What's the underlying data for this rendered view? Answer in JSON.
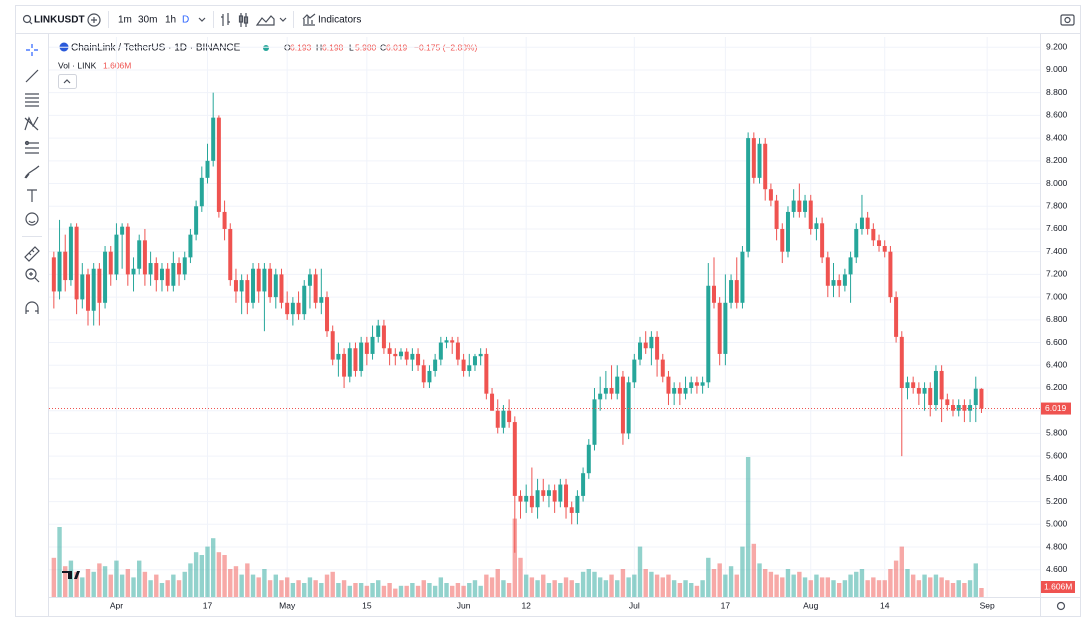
{
  "toolbar": {
    "symbol": "LINKUSDT",
    "intervals": [
      "1m",
      "30m",
      "1h",
      "D"
    ],
    "indicators": "Indicators"
  },
  "chart_data": {
    "type": "candlestick",
    "title": "ChainLink / TetherUS · 1D · BINANCE",
    "legend": [
      {
        "key": "O",
        "value": "6.193"
      },
      {
        "key": "H",
        "value": "6.198"
      },
      {
        "key": "L",
        "value": "5.980"
      },
      {
        "key": "C",
        "value": "6.019"
      }
    ],
    "change": "−0.175 (−2.83%)",
    "volume_name": "Vol · LINK",
    "volume_label": "1.606M",
    "last_price_label": "6.019",
    "up_color": "#26a69a",
    "down_color": "#ef5350",
    "categories": [
      null,
      null,
      null,
      null,
      null,
      null,
      null,
      null,
      null,
      null,
      null,
      "Apr",
      null,
      null,
      null,
      null,
      null,
      null,
      null,
      null,
      null,
      null,
      null,
      null,
      null,
      null,
      null,
      "17",
      null,
      null,
      null,
      null,
      null,
      null,
      null,
      null,
      null,
      null,
      null,
      null,
      null,
      "May",
      null,
      null,
      null,
      null,
      null,
      null,
      null,
      null,
      null,
      null,
      null,
      null,
      null,
      "15",
      null,
      null,
      null,
      null,
      null,
      null,
      null,
      null,
      null,
      null,
      null,
      null,
      null,
      null,
      null,
      null,
      "Jun",
      null,
      null,
      null,
      null,
      null,
      null,
      null,
      null,
      null,
      null,
      "12",
      null,
      null,
      null,
      null,
      null,
      null,
      null,
      null,
      null,
      null,
      null,
      null,
      null,
      null,
      null,
      null,
      null,
      null,
      "Jul",
      null,
      null,
      null,
      null,
      null,
      null,
      null,
      null,
      null,
      null,
      null,
      null,
      null,
      null,
      null,
      "17",
      null,
      null,
      null,
      null,
      null,
      null,
      null,
      null,
      null,
      null,
      null,
      null,
      null,
      null,
      "Aug",
      null,
      null,
      null,
      null,
      null,
      null,
      null,
      null,
      null,
      null,
      null,
      null,
      "14",
      null,
      null,
      null,
      null,
      null,
      null,
      null,
      null,
      null,
      null,
      null,
      null,
      null,
      null,
      null,
      null,
      null,
      "Sep"
    ],
    "open": [
      7.35,
      7.05,
      7.4,
      7.15,
      7.62,
      6.98,
      7.2,
      6.88,
      7.25,
      6.95,
      7.4,
      7.2,
      7.55,
      7.62,
      7.2,
      7.25,
      7.5,
      7.2,
      7.3,
      7.15,
      7.25,
      7.1,
      7.3,
      7.2,
      7.35,
      7.55,
      7.8,
      8.05,
      8.2,
      8.58,
      7.75,
      7.6,
      7.15,
      7.05,
      7.15,
      6.95,
      7.25,
      7.05,
      7.25,
      7.0,
      7.2,
      6.95,
      6.85,
      6.95,
      6.85,
      7.1,
      7.2,
      6.95,
      7.0,
      6.7,
      6.45,
      6.5,
      6.3,
      6.55,
      6.35,
      6.6,
      6.5,
      6.65,
      6.75,
      6.55,
      6.5,
      6.48,
      6.52,
      6.45,
      6.5,
      6.4,
      6.25,
      6.35,
      6.45,
      6.6,
      6.62,
      6.6,
      6.45,
      6.35,
      6.4,
      6.48,
      6.5,
      6.15,
      6.0,
      5.85,
      6.0,
      5.9,
      5.25,
      5.2,
      5.25,
      5.15,
      5.3,
      5.25,
      5.3,
      5.2,
      5.35,
      5.15,
      5.1,
      5.25,
      5.45,
      5.7,
      6.1,
      6.15,
      6.2,
      6.15,
      6.3,
      5.8,
      6.25,
      6.45,
      6.6,
      6.55,
      6.65,
      6.45,
      6.3,
      6.15,
      6.2,
      6.15,
      6.2,
      6.25,
      6.22,
      6.25,
      7.1,
      6.95,
      6.5,
      6.95,
      7.15,
      6.95,
      7.4,
      8.4,
      8.05,
      8.35,
      7.95,
      7.85,
      7.6,
      7.4,
      7.75,
      7.85,
      7.75,
      7.85,
      7.6,
      7.65,
      7.35,
      7.1,
      7.15,
      7.1,
      7.2,
      7.35,
      7.6,
      7.7,
      7.6,
      7.5,
      7.45,
      7.4,
      7.0,
      6.65,
      6.2,
      6.25,
      6.2,
      6.15,
      6.2,
      6.05,
      6.35,
      6.1,
      6.05,
      6.0,
      6.05,
      6.0,
      6.05,
      6.193,
      null
    ],
    "high": [
      7.4,
      7.68,
      7.55,
      7.65,
      7.65,
      7.3,
      7.25,
      7.3,
      7.3,
      7.45,
      7.45,
      7.65,
      7.65,
      7.65,
      7.35,
      7.55,
      7.6,
      7.4,
      7.35,
      7.3,
      7.3,
      7.4,
      7.35,
      7.4,
      7.6,
      7.85,
      8.15,
      8.35,
      8.8,
      8.6,
      7.85,
      7.65,
      7.25,
      7.2,
      7.2,
      7.3,
      7.3,
      7.3,
      7.3,
      7.25,
      7.25,
      7.05,
      7.0,
      7.05,
      7.15,
      7.25,
      7.25,
      7.25,
      7.05,
      6.75,
      6.6,
      6.55,
      6.6,
      6.6,
      6.65,
      6.65,
      6.75,
      6.8,
      6.8,
      6.6,
      6.55,
      6.55,
      6.55,
      6.55,
      6.55,
      6.45,
      6.4,
      6.5,
      6.65,
      6.65,
      6.65,
      6.65,
      6.5,
      6.5,
      6.5,
      6.55,
      6.55,
      6.2,
      6.1,
      6.05,
      6.1,
      5.95,
      5.3,
      5.35,
      5.5,
      5.4,
      5.4,
      5.35,
      5.35,
      5.4,
      5.4,
      5.2,
      5.3,
      5.5,
      5.75,
      6.2,
      6.3,
      6.35,
      6.4,
      6.4,
      6.35,
      6.3,
      6.5,
      6.65,
      6.7,
      6.7,
      6.7,
      6.5,
      6.35,
      6.25,
      6.25,
      6.3,
      6.3,
      6.3,
      6.3,
      7.3,
      7.35,
      7.0,
      7.2,
      7.2,
      7.35,
      7.45,
      8.45,
      8.45,
      8.4,
      8.4,
      8.0,
      7.9,
      7.65,
      7.8,
      7.95,
      8.0,
      7.9,
      7.9,
      7.7,
      7.7,
      7.4,
      7.3,
      7.2,
      7.25,
      7.4,
      7.65,
      7.9,
      7.75,
      7.65,
      7.55,
      7.5,
      7.45,
      7.05,
      6.7,
      6.3,
      6.3,
      6.25,
      6.25,
      6.25,
      6.4,
      6.4,
      6.15,
      6.1,
      6.1,
      6.1,
      6.1,
      6.3,
      6.198,
      null
    ],
    "low": [
      6.9,
      6.98,
      7.05,
      7.1,
      6.85,
      6.9,
      6.75,
      6.75,
      6.75,
      6.9,
      7.1,
      7.15,
      7.25,
      7.1,
      7.05,
      7.2,
      7.1,
      7.1,
      7.05,
      7.05,
      7.05,
      7.05,
      7.1,
      7.15,
      7.3,
      7.5,
      7.75,
      8.0,
      8.15,
      7.7,
      7.5,
      7.1,
      6.95,
      6.85,
      6.85,
      6.9,
      6.95,
      6.7,
      6.95,
      6.9,
      6.9,
      6.8,
      6.75,
      6.8,
      6.8,
      6.9,
      6.9,
      6.85,
      6.65,
      6.4,
      6.3,
      6.2,
      6.25,
      6.3,
      6.3,
      6.4,
      6.45,
      6.6,
      6.5,
      6.4,
      6.4,
      6.45,
      6.4,
      6.35,
      6.35,
      6.2,
      6.2,
      6.3,
      6.4,
      6.55,
      6.5,
      6.4,
      6.3,
      6.3,
      6.35,
      6.4,
      6.1,
      6.0,
      5.8,
      5.8,
      5.85,
      4.75,
      5.05,
      5.1,
      5.1,
      5.05,
      5.2,
      5.15,
      5.1,
      5.15,
      5.05,
      5.0,
      5.0,
      5.2,
      5.4,
      5.65,
      6.0,
      6.1,
      6.1,
      6.1,
      5.7,
      5.75,
      6.2,
      6.4,
      6.5,
      6.4,
      6.3,
      6.25,
      6.05,
      6.05,
      6.05,
      6.1,
      6.15,
      6.15,
      6.15,
      6.2,
      6.9,
      6.4,
      6.4,
      6.9,
      6.9,
      6.9,
      7.35,
      8.0,
      8.0,
      7.85,
      7.8,
      7.5,
      7.3,
      7.35,
      7.7,
      7.7,
      7.7,
      7.55,
      7.5,
      7.3,
      7.0,
      7.0,
      7.0,
      7.05,
      6.95,
      7.3,
      7.55,
      7.55,
      7.45,
      7.4,
      7.35,
      6.95,
      6.6,
      5.6,
      6.1,
      6.15,
      6.05,
      6.0,
      5.95,
      6.0,
      5.9,
      6.0,
      5.95,
      5.95,
      5.9,
      5.9,
      5.9,
      5.98,
      null
    ],
    "close": [
      7.05,
      7.4,
      7.15,
      7.62,
      6.98,
      7.2,
      6.88,
      7.25,
      6.95,
      7.4,
      7.2,
      7.55,
      7.62,
      7.2,
      7.25,
      7.5,
      7.2,
      7.3,
      7.15,
      7.25,
      7.1,
      7.3,
      7.2,
      7.35,
      7.55,
      7.8,
      8.05,
      8.2,
      8.58,
      7.75,
      7.6,
      7.15,
      7.05,
      7.15,
      6.95,
      7.25,
      7.05,
      7.25,
      7.0,
      7.2,
      6.95,
      6.85,
      6.95,
      6.85,
      7.1,
      7.2,
      6.95,
      7.0,
      6.7,
      6.45,
      6.5,
      6.3,
      6.55,
      6.35,
      6.6,
      6.5,
      6.65,
      6.75,
      6.55,
      6.5,
      6.48,
      6.52,
      6.45,
      6.5,
      6.4,
      6.25,
      6.35,
      6.45,
      6.6,
      6.62,
      6.6,
      6.45,
      6.35,
      6.4,
      6.48,
      6.5,
      6.15,
      6.0,
      5.85,
      6.0,
      5.9,
      5.25,
      5.2,
      5.25,
      5.15,
      5.3,
      5.25,
      5.3,
      5.2,
      5.35,
      5.15,
      5.1,
      5.25,
      5.45,
      5.7,
      6.1,
      6.15,
      6.2,
      6.15,
      6.3,
      5.8,
      6.25,
      6.45,
      6.6,
      6.55,
      6.65,
      6.45,
      6.3,
      6.15,
      6.2,
      6.15,
      6.2,
      6.25,
      6.22,
      6.25,
      7.1,
      6.95,
      6.5,
      6.95,
      7.15,
      6.95,
      7.4,
      8.4,
      8.05,
      8.35,
      7.95,
      7.85,
      7.6,
      7.4,
      7.75,
      7.85,
      7.75,
      7.85,
      7.6,
      7.65,
      7.35,
      7.1,
      7.15,
      7.1,
      7.2,
      7.35,
      7.6,
      7.7,
      7.6,
      7.5,
      7.45,
      7.4,
      7.0,
      6.65,
      6.2,
      6.25,
      6.2,
      6.15,
      6.2,
      6.05,
      6.35,
      6.1,
      6.05,
      6.0,
      6.05,
      6.0,
      6.05,
      6.194,
      6.019,
      null
    ],
    "volume": [
      7.0,
      12.5,
      5.5,
      6.5,
      4.5,
      3.5,
      5,
      4.5,
      6,
      5.5,
      4,
      6.5,
      4,
      5,
      3.5,
      6.5,
      4.5,
      3,
      4,
      2.5,
      3,
      4,
      3,
      4.5,
      6,
      8,
      7.5,
      9,
      10.5,
      8,
      7.5,
      5,
      5.5,
      4,
      6,
      4,
      3.5,
      5,
      3,
      4,
      3,
      3.5,
      2.5,
      3,
      2.5,
      3.5,
      3,
      2.5,
      4,
      4.5,
      2.5,
      3,
      2,
      2.5,
      2.5,
      2,
      2.5,
      3,
      2,
      2.5,
      1.5,
      2,
      2,
      2.5,
      2,
      3,
      2.5,
      2,
      3.5,
      2.5,
      2,
      2.5,
      2,
      2.5,
      3,
      2,
      4,
      3.5,
      5,
      3,
      2.5,
      14,
      7,
      4,
      3.5,
      3,
      4,
      2.5,
      3,
      2.5,
      3.5,
      3,
      2.5,
      4.5,
      5,
      4.5,
      3.5,
      3,
      4,
      3,
      5,
      3.5,
      4,
      9,
      5,
      4.5,
      4,
      3.5,
      4,
      3,
      2.5,
      3,
      2.5,
      2,
      3,
      7,
      5,
      6,
      4,
      5.5,
      4,
      9,
      25,
      9.5,
      6,
      5,
      4.5,
      4,
      3.5,
      5,
      4,
      4.5,
      3.5,
      3,
      4,
      3.5,
      3.5,
      3,
      2.5,
      3,
      4,
      4.5,
      5,
      3,
      3.5,
      3,
      3,
      5,
      6.5,
      9,
      5,
      4,
      3,
      4,
      3.5,
      4,
      3.5,
      3,
      2.5,
      3,
      2.5,
      3,
      6,
      1.606,
      null
    ],
    "ylim": [
      4.36,
      9.29
    ],
    "yticks": [
      {
        "value": 9.2,
        "label": "9.200"
      },
      {
        "value": 9.0,
        "label": "9.000"
      },
      {
        "value": 8.8,
        "label": "8.800"
      },
      {
        "value": 8.6,
        "label": "8.600"
      },
      {
        "value": 8.4,
        "label": "8.400"
      },
      {
        "value": 8.2,
        "label": "8.200"
      },
      {
        "value": 8.0,
        "label": "8.000"
      },
      {
        "value": 7.8,
        "label": "7.800"
      },
      {
        "value": 7.6,
        "label": "7.600"
      },
      {
        "value": 7.4,
        "label": "7.400"
      },
      {
        "value": 7.2,
        "label": "7.200"
      },
      {
        "value": 7.0,
        "label": "7.000"
      },
      {
        "value": 6.8,
        "label": "6.800"
      },
      {
        "value": 6.6,
        "label": "6.600"
      },
      {
        "value": 6.4,
        "label": "6.400"
      },
      {
        "value": 6.2,
        "label": "6.200"
      },
      {
        "value": 6.0,
        "label": "6.000"
      },
      {
        "value": 5.8,
        "label": "5.800"
      },
      {
        "value": 5.6,
        "label": "5.600"
      },
      {
        "value": 5.4,
        "label": "5.400"
      },
      {
        "value": 5.2,
        "label": "5.200"
      },
      {
        "value": 5.0,
        "label": "5.000"
      },
      {
        "value": 4.8,
        "label": "4.800"
      },
      {
        "value": 4.6,
        "label": "4.600"
      }
    ],
    "grid": true
  }
}
